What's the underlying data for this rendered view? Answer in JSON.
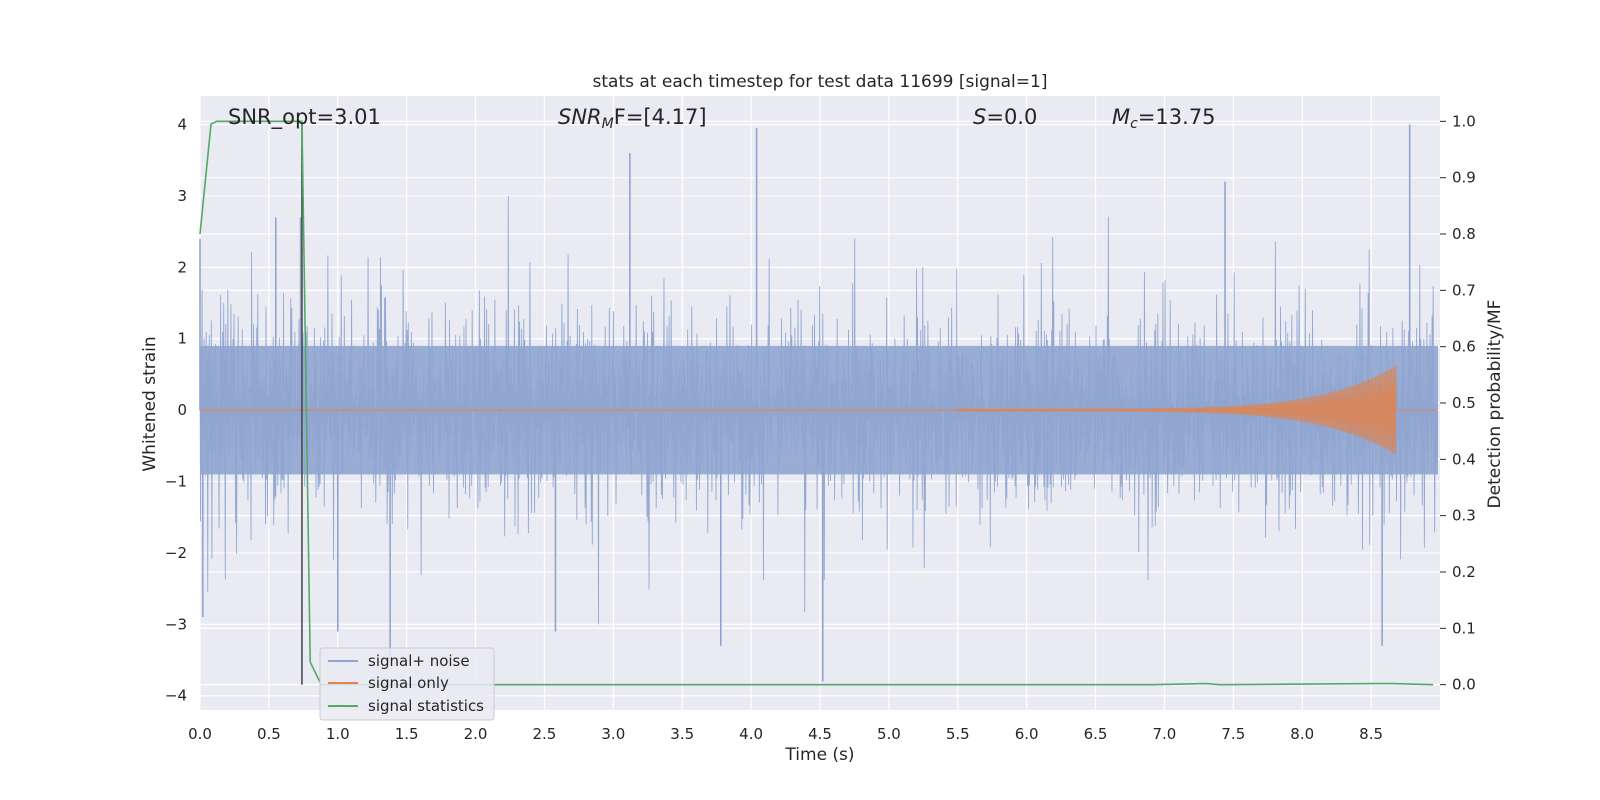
{
  "chart_data": {
    "type": "line",
    "title": "stats at each timestep for test data 11699 [signal=1]",
    "xlabel": "Time (s)",
    "ylabel": "Whitened strain",
    "y2label": "Detection probability/MF",
    "xlim": [
      0.0,
      9.0
    ],
    "ylim": [
      -4.2,
      4.4
    ],
    "y2lim": [
      -0.045,
      1.045
    ],
    "xticks": [
      "0.0",
      "0.5",
      "1.0",
      "1.5",
      "2.0",
      "2.5",
      "3.0",
      "3.5",
      "4.0",
      "4.5",
      "5.0",
      "5.5",
      "6.0",
      "6.5",
      "7.0",
      "7.5",
      "8.0",
      "8.5"
    ],
    "yticks": [
      "4",
      "3",
      "2",
      "1",
      "0",
      "−1",
      "−2",
      "−3",
      "−4"
    ],
    "y2ticks": [
      "1.0",
      "0.9",
      "0.8",
      "0.7",
      "0.6",
      "0.5",
      "0.4",
      "0.3",
      "0.2",
      "0.1",
      "0.0"
    ],
    "grid": true,
    "legend_position": "lower-left",
    "annotations": {
      "snr_opt": "SNR_opt=3.01",
      "snr_mf_base": "SNR",
      "snr_mf_sub": "M",
      "snr_mf_rest": "F=[4.17]",
      "s_italic": "S",
      "s_rest": "=0.0",
      "mc_base": "M",
      "mc_sub": "c",
      "mc_rest": "=13.75"
    },
    "marker_line_x": 0.74,
    "series": [
      {
        "name": "signal+ noise",
        "color": "#8fa5d0",
        "description_range": [
          -4.0,
          4.0
        ],
        "spikes": [
          {
            "x": 0.0,
            "y": 2.4
          },
          {
            "x": 0.02,
            "y": -2.9
          },
          {
            "x": 0.55,
            "y": 2.7
          },
          {
            "x": 0.73,
            "y": 2.7
          },
          {
            "x": 1.0,
            "y": -3.1
          },
          {
            "x": 1.38,
            "y": -3.5
          },
          {
            "x": 2.58,
            "y": -3.1
          },
          {
            "x": 3.12,
            "y": 3.6
          },
          {
            "x": 3.78,
            "y": -3.3
          },
          {
            "x": 4.04,
            "y": 3.95
          },
          {
            "x": 4.52,
            "y": -3.8
          },
          {
            "x": 7.44,
            "y": 3.2
          },
          {
            "x": 8.58,
            "y": -3.3
          },
          {
            "x": 8.78,
            "y": 4.0
          }
        ]
      },
      {
        "name": "signal only",
        "color": "#dd8452",
        "chirp_end_x": 8.68,
        "peak_amplitude": 0.6
      },
      {
        "name": "signal statistics",
        "color": "#55a868",
        "axis": "right",
        "points": [
          [
            0.0,
            0.8
          ],
          [
            0.08,
            0.995
          ],
          [
            0.12,
            1.0
          ],
          [
            0.74,
            1.0
          ],
          [
            0.8,
            0.04
          ],
          [
            0.88,
            0.0
          ],
          [
            6.9,
            0.0
          ],
          [
            7.3,
            0.002
          ],
          [
            7.4,
            0.0
          ],
          [
            8.55,
            0.002
          ],
          [
            8.65,
            0.002
          ],
          [
            8.95,
            0.0
          ]
        ]
      }
    ]
  }
}
